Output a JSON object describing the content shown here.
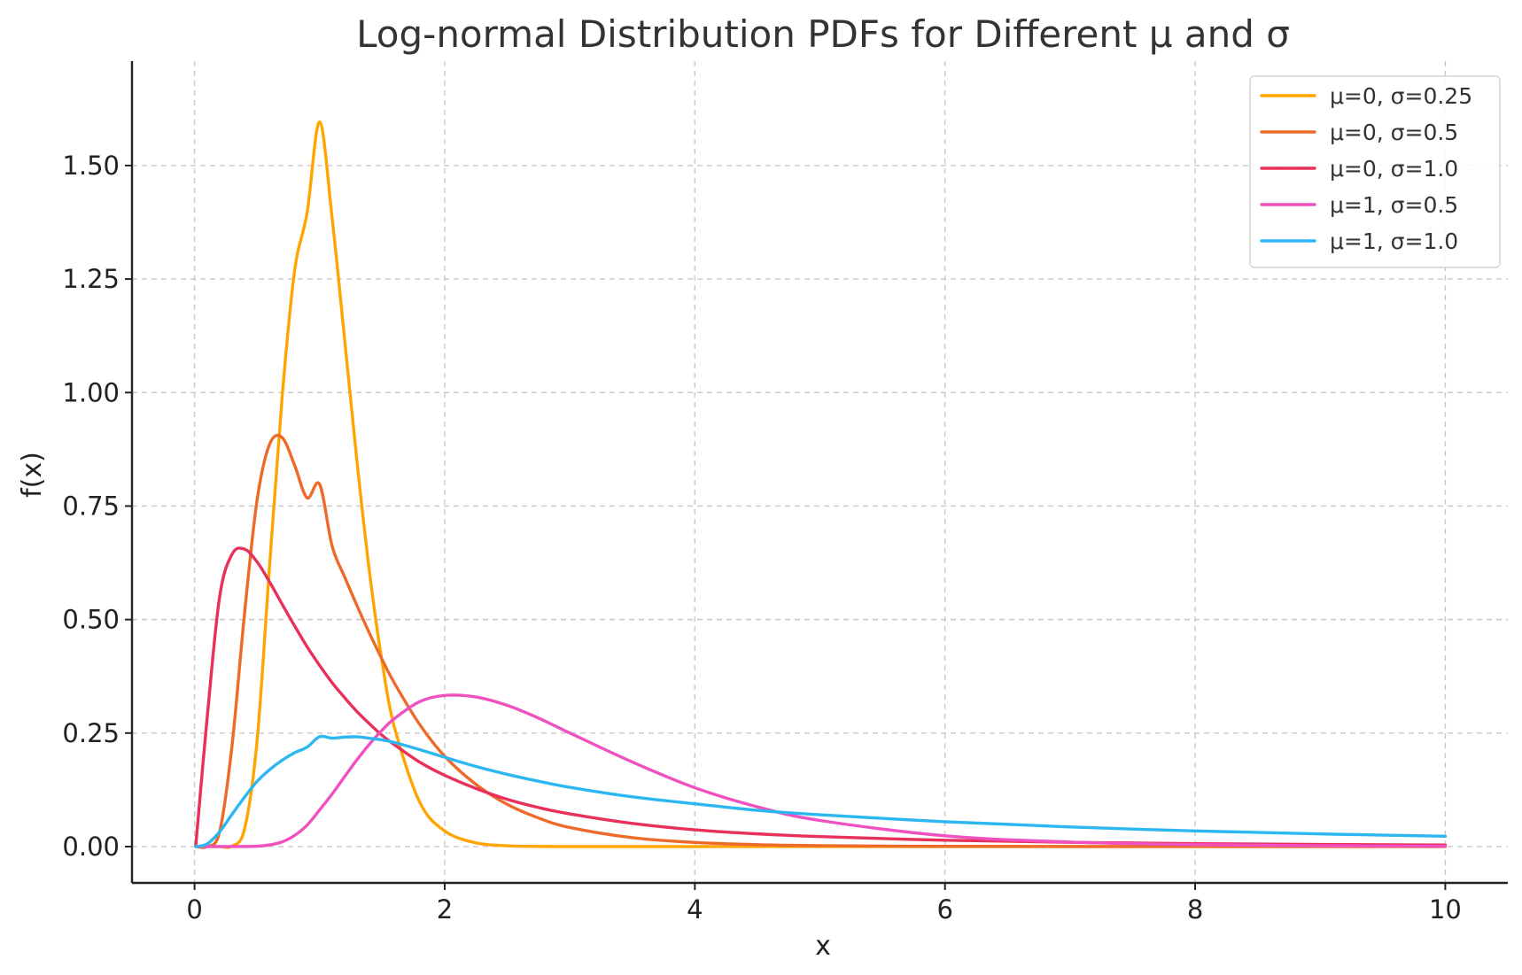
{
  "chart_data": {
    "type": "line",
    "title": "Log-normal Distribution PDFs for Different μ and σ",
    "xlabel": "x",
    "ylabel": "f(x)",
    "xlim": [
      -0.5,
      10.5
    ],
    "ylim": [
      -0.08,
      1.73
    ],
    "xticks": [
      0,
      2,
      4,
      6,
      8,
      10
    ],
    "xtick_labels": [
      "0",
      "2",
      "4",
      "6",
      "8",
      "10"
    ],
    "yticks": [
      0,
      0.25,
      0.5,
      0.75,
      1.0,
      1.25,
      1.5
    ],
    "ytick_labels": [
      "0.00",
      "0.25",
      "0.50",
      "0.75",
      "1.00",
      "1.25",
      "1.50"
    ],
    "grid": true,
    "legend_position": "top-right",
    "x": [
      0.01,
      0.1,
      0.2,
      0.3,
      0.4,
      0.5,
      0.6,
      0.7,
      0.8,
      0.9,
      1.0,
      1.1,
      1.2,
      1.3,
      1.4,
      1.5,
      1.6,
      1.8,
      2.0,
      2.25,
      2.5,
      2.75,
      3.0,
      3.5,
      4.0,
      4.5,
      5.0,
      6.0,
      7.0,
      8.0,
      9.0,
      10.0
    ],
    "series": [
      {
        "name": "μ=0, σ=0.25",
        "color": "#FFA500",
        "values": [
          0.0,
          0.0,
          0.0,
          0.0012,
          0.039,
          0.233,
          0.618,
          0.989,
          1.268,
          1.396,
          1.596,
          1.384,
          1.117,
          0.845,
          0.602,
          0.406,
          0.261,
          0.098,
          0.0344,
          0.0081,
          0.0019,
          0.0004,
          0.0001,
          0.0,
          0.0,
          0.0,
          0.0,
          0.0,
          0.0,
          0.0,
          0.0,
          0.0
        ]
      },
      {
        "name": "μ=0, σ=0.5",
        "color": "#EE6A2A",
        "values": [
          0.0,
          0.0,
          0.032,
          0.223,
          0.514,
          0.763,
          0.886,
          0.901,
          0.84,
          0.768,
          0.798,
          0.662,
          0.594,
          0.53,
          0.469,
          0.412,
          0.359,
          0.269,
          0.199,
          0.137,
          0.093,
          0.063,
          0.042,
          0.0196,
          0.0091,
          0.0043,
          0.002,
          0.0005,
          0.0001,
          0.0,
          0.0,
          0.0
        ]
      },
      {
        "name": "μ=0, σ=1.0",
        "color": "#E8305A",
        "values": [
          0.0023,
          0.281,
          0.549,
          0.644,
          0.655,
          0.627,
          0.583,
          0.534,
          0.486,
          0.44,
          0.399,
          0.361,
          0.328,
          0.297,
          0.27,
          0.245,
          0.224,
          0.186,
          0.157,
          0.128,
          0.104,
          0.086,
          0.072,
          0.051,
          0.037,
          0.028,
          0.022,
          0.014,
          0.0094,
          0.0065,
          0.0047,
          0.0035
        ]
      },
      {
        "name": "μ=1, σ=0.5",
        "color": "#F050C0",
        "values": [
          0.0,
          0.0,
          0.0,
          0.0,
          0.0002,
          0.0008,
          0.0037,
          0.0102,
          0.0246,
          0.0472,
          0.0807,
          0.1158,
          0.1541,
          0.1917,
          0.226,
          0.2565,
          0.2823,
          0.3192,
          0.3328,
          0.3295,
          0.311,
          0.283,
          0.2502,
          0.1863,
          0.1296,
          0.0875,
          0.0575,
          0.0237,
          0.0099,
          0.0042,
          0.0018,
          0.0008
        ]
      },
      {
        "name": "μ=1, σ=1.0",
        "color": "#2DB7F0",
        "values": [
          0.0,
          0.0058,
          0.0324,
          0.0711,
          0.1089,
          0.1436,
          0.1693,
          0.1901,
          0.2068,
          0.2191,
          0.242,
          0.2389,
          0.2411,
          0.2417,
          0.2385,
          0.235,
          0.2292,
          0.2136,
          0.1967,
          0.1765,
          0.1591,
          0.144,
          0.1305,
          0.1095,
          0.0943,
          0.0798,
          0.07,
          0.0547,
          0.0433,
          0.0344,
          0.0279,
          0.0227
        ]
      }
    ]
  }
}
